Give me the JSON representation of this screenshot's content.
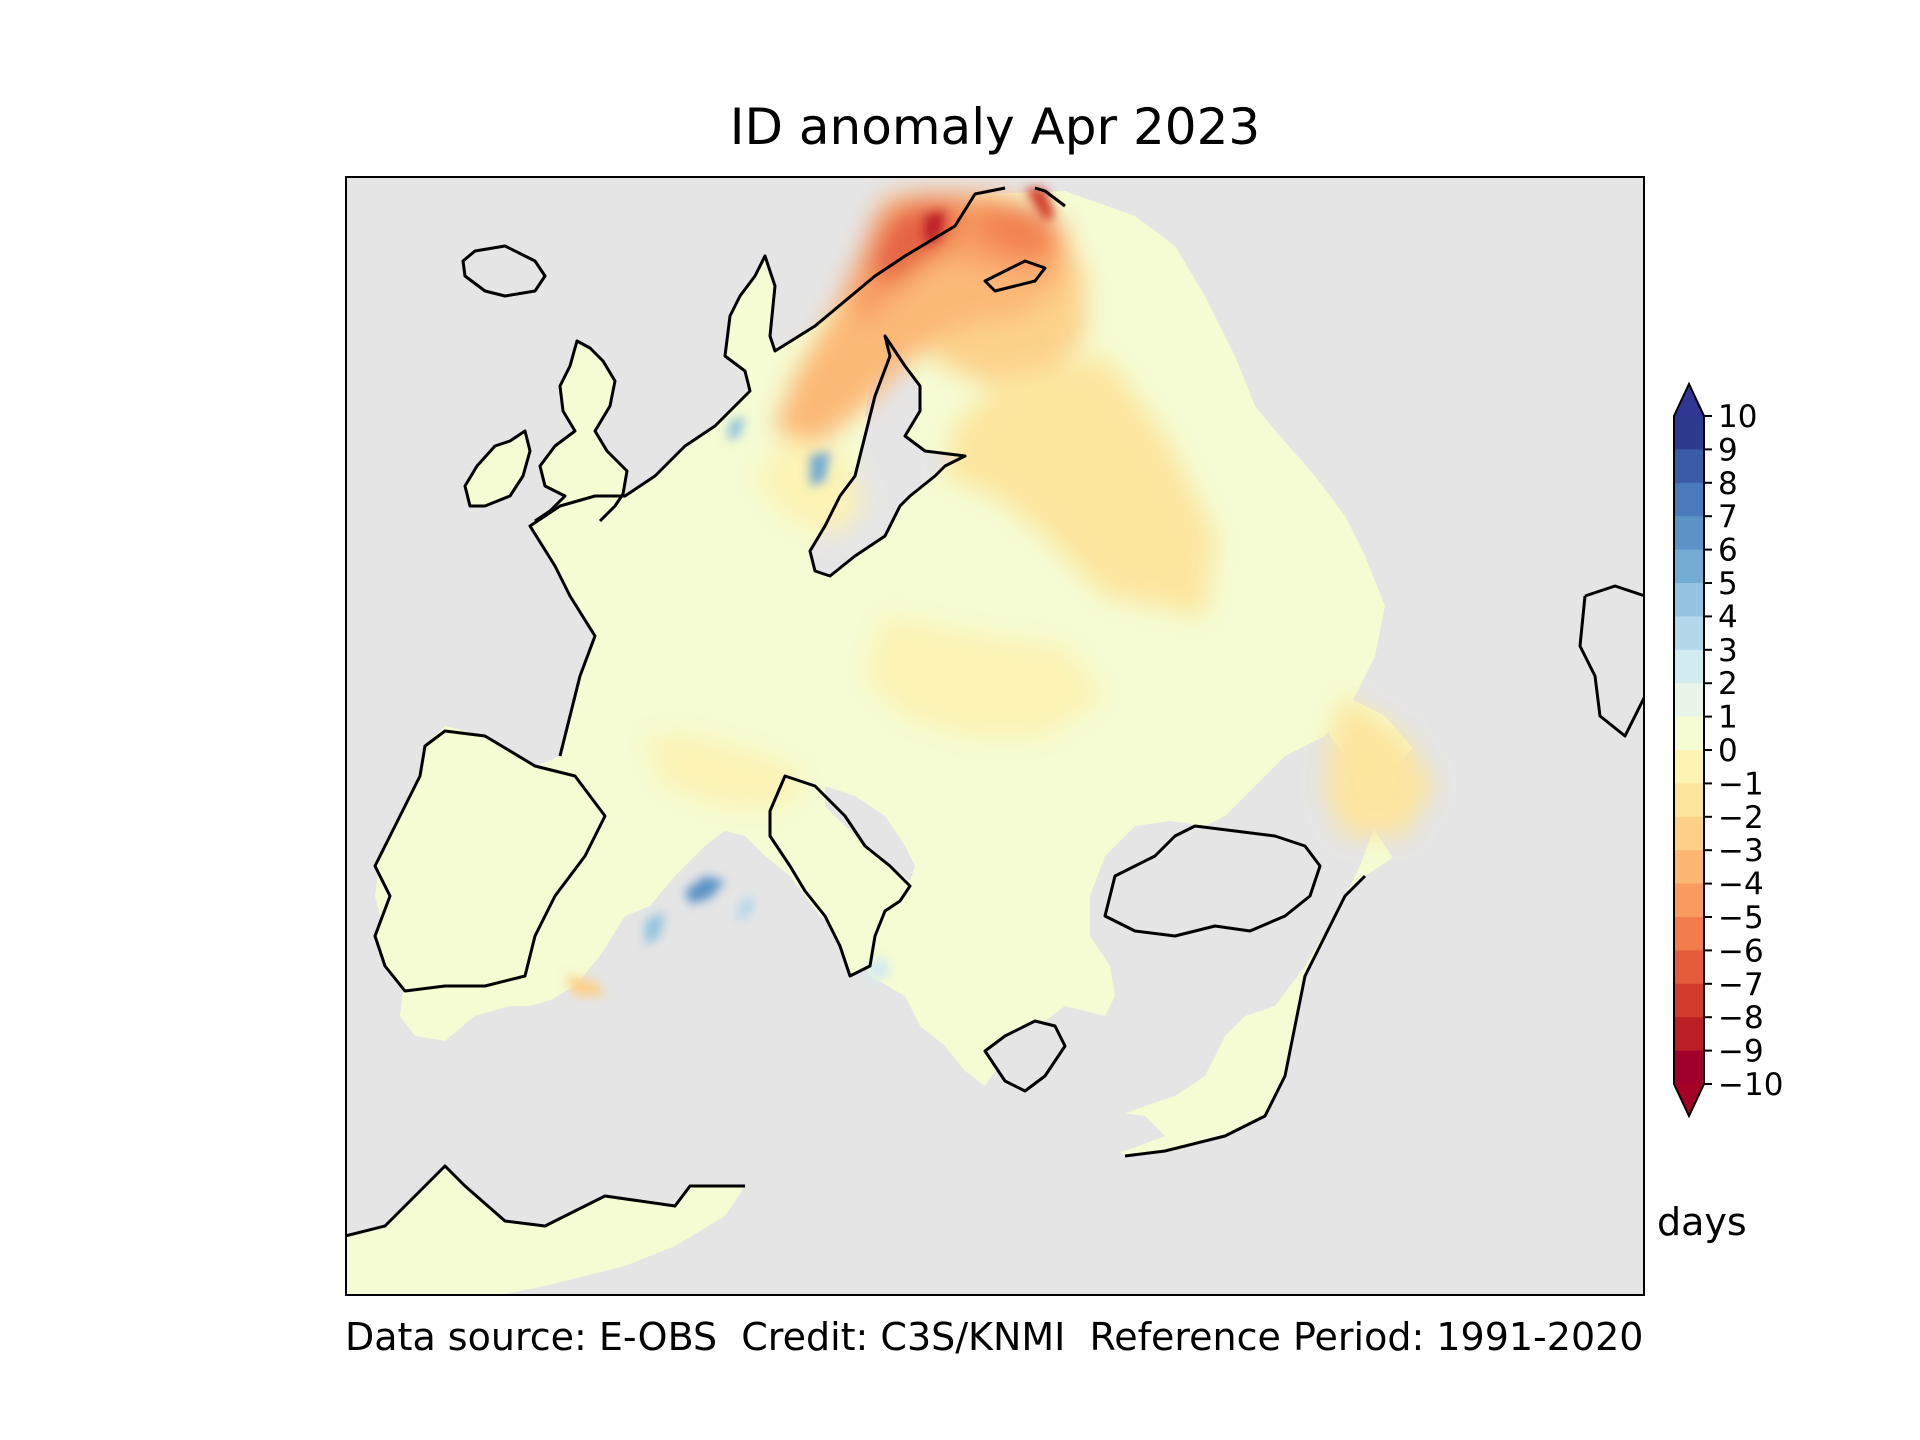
{
  "title": "ID anomaly Apr 2023",
  "units_label": "days",
  "footer": "Data source: E-OBS  Credit: C3S/KNMI  Reference Period: 1991-2020",
  "colorbar": {
    "ticks": [
      "10",
      "9",
      "8",
      "7",
      "6",
      "5",
      "4",
      "3",
      "2",
      "1",
      "0",
      "−1",
      "−2",
      "−3",
      "−4",
      "−5",
      "−6",
      "−7",
      "−8",
      "−9",
      "−10"
    ],
    "colors": [
      "#2c3b8e",
      "#3a5ba5",
      "#4a7abb",
      "#5b93c7",
      "#74abd3",
      "#93c3df",
      "#b3d8e9",
      "#d2ebf1",
      "#e8f5e8",
      "#f5fbd2",
      "#fdf3b3",
      "#fde59c",
      "#fdd088",
      "#fcb672",
      "#f99a5e",
      "#f27c4c",
      "#e55c3a",
      "#d33c2c",
      "#bb1f25",
      "#a2002c"
    ],
    "min": -10,
    "max": 10
  },
  "map": {
    "land_color": "#f5fbd2",
    "sea_color": "#e5e5e5",
    "coast_color": "#000000"
  }
}
